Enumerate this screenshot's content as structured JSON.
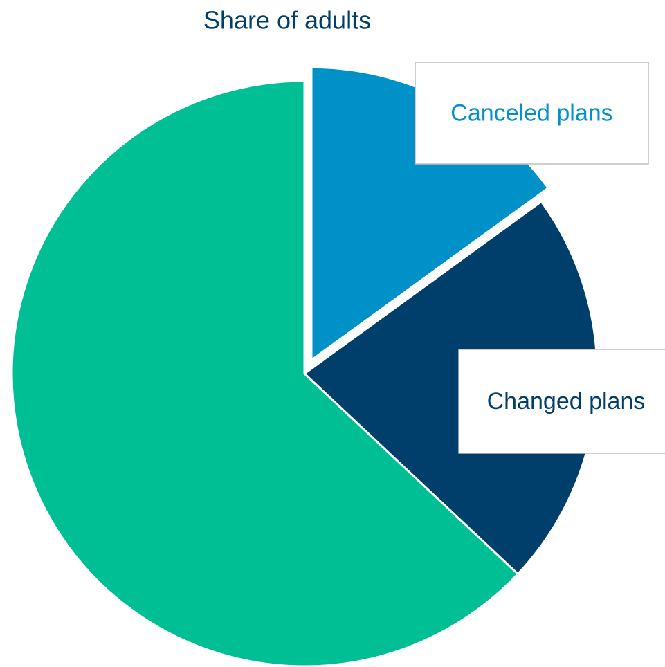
{
  "chart_data": {
    "type": "pie",
    "title": "Share of adults",
    "categories": [
      "Canceled plans",
      "Changed plans",
      null
    ],
    "values": [
      15,
      22,
      63
    ],
    "colors": [
      "#0091c9",
      "#003f6b",
      "#00bf94"
    ],
    "explode": [
      true,
      false,
      false
    ]
  }
}
